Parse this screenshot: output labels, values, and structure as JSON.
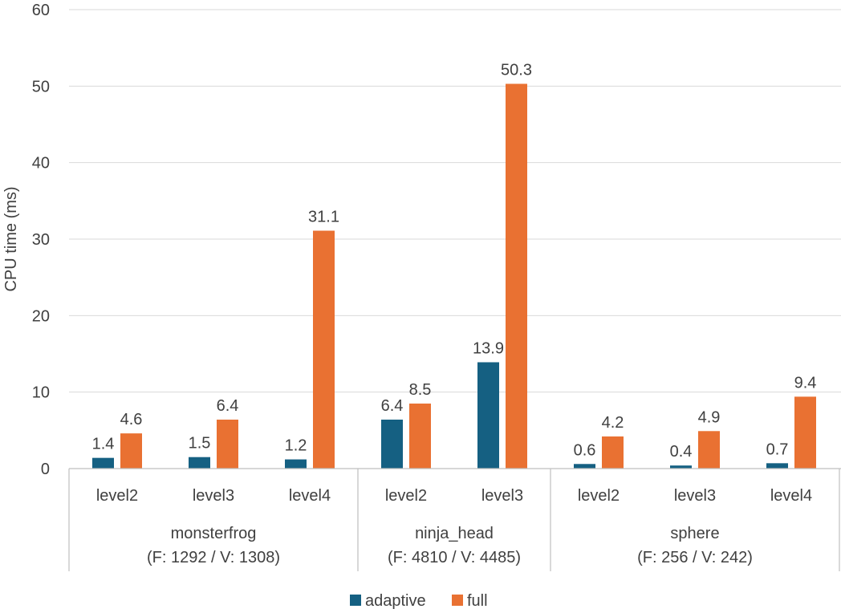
{
  "chart_data": {
    "type": "bar",
    "title": "",
    "ylabel": "CPU time (ms)",
    "xlabel": "",
    "ylim": [
      0,
      60
    ],
    "yticks": [
      0,
      10,
      20,
      30,
      40,
      50,
      60
    ],
    "grid": true,
    "legend_position": "bottom",
    "groups": [
      {
        "name_line1": "monsterfrog",
        "name_line2": "(F: 1292 / V: 1308)",
        "categories": [
          "level2",
          "level3",
          "level4"
        ]
      },
      {
        "name_line1": "ninja_head",
        "name_line2": "(F: 4810 / V: 4485)",
        "categories": [
          "level2",
          "level3"
        ]
      },
      {
        "name_line1": "sphere",
        "name_line2": "(F: 256 / V: 242)",
        "categories": [
          "level2",
          "level3",
          "level4"
        ]
      }
    ],
    "series": [
      {
        "name": "adaptive",
        "color": "#156082",
        "values": [
          1.4,
          1.5,
          1.2,
          6.4,
          13.9,
          0.6,
          0.4,
          0.7
        ],
        "labels": [
          "1.4",
          "1.5",
          "1.2",
          "6.4",
          "13.9",
          "0.6",
          "0.4",
          "0.7"
        ]
      },
      {
        "name": "full",
        "color": "#e97132",
        "values": [
          4.6,
          6.4,
          31.1,
          8.5,
          50.3,
          4.2,
          4.9,
          9.4
        ],
        "labels": [
          "4.6",
          "6.4",
          "31.1",
          "8.5",
          "50.3",
          "4.2",
          "4.9",
          "9.4"
        ]
      }
    ]
  }
}
